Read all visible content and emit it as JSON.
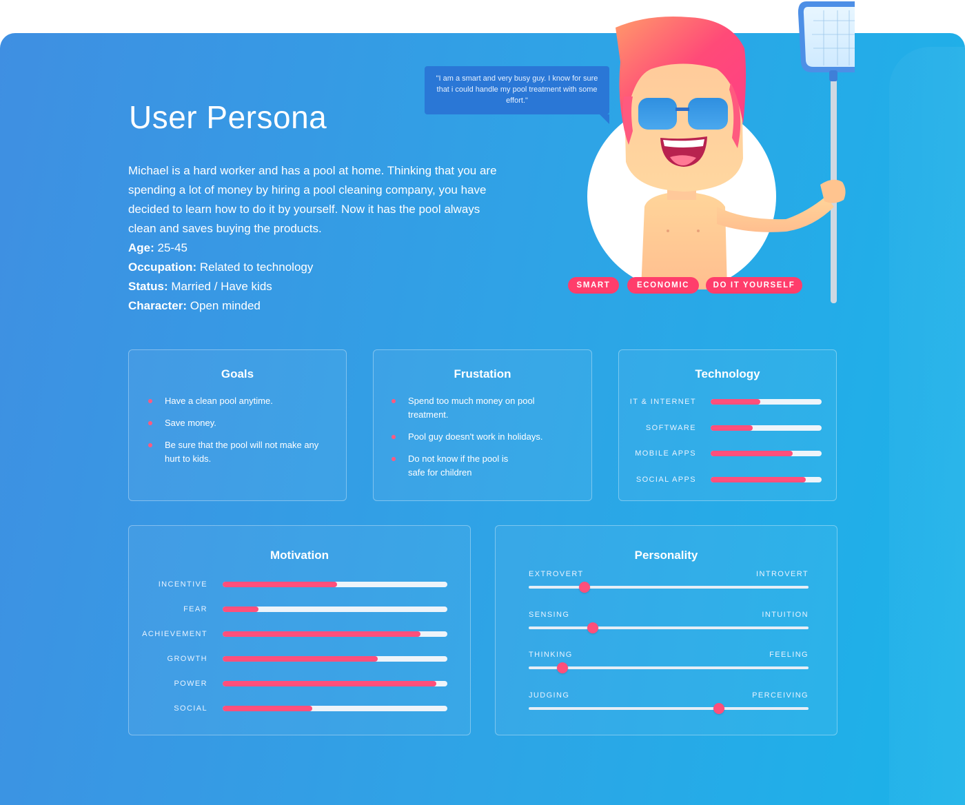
{
  "title": "User Persona",
  "quote": "\"I am a smart and very busy guy. I know for sure that i could handle my pool treatment with some effort.\"",
  "description": "Michael is a hard worker and has a pool at home. Thinking  that you are spending a lot of money by hiring a pool cleaning company, you have decided to learn how to do it by yourself. Now it has the pool always clean and saves buying the products.",
  "details": [
    {
      "label": "Age:",
      "value": "25-45"
    },
    {
      "label": "Occupation:",
      "value": "Related to technology"
    },
    {
      "label": "Status:",
      "value": "Married / Have kids"
    },
    {
      "label": "Character:",
      "value": "Open minded"
    }
  ],
  "tags": [
    "SMART",
    "ECONOMIC",
    "DO IT YOURSELF"
  ],
  "goals": {
    "title": "Goals",
    "items": [
      "Have a clean pool anytime.",
      "Save money.",
      "Be sure that the pool will not make any hurt to kids."
    ]
  },
  "frustration": {
    "title": "Frustation",
    "items": [
      "Spend too much money on pool treatment.",
      "Pool guy doesn't work in holidays.",
      "Do not know if the pool is safe for children"
    ]
  },
  "technology": {
    "title": "Technology",
    "items": [
      {
        "label": "IT & INTERNET",
        "value": 0.45
      },
      {
        "label": "SOFTWARE",
        "value": 0.38
      },
      {
        "label": "MOBILE APPS",
        "value": 0.74
      },
      {
        "label": "SOCIAL APPS",
        "value": 0.86
      }
    ]
  },
  "motivation": {
    "title": "Motivation",
    "items": [
      {
        "label": "INCENTIVE",
        "value": 0.51
      },
      {
        "label": "FEAR",
        "value": 0.16
      },
      {
        "label": "ACHIEVEMENT",
        "value": 0.88
      },
      {
        "label": "GROWTH",
        "value": 0.69
      },
      {
        "label": "POWER",
        "value": 0.95
      },
      {
        "label": "SOCIAL",
        "value": 0.4
      }
    ]
  },
  "personality": {
    "title": "Personality",
    "items": [
      {
        "left": "EXTROVERT",
        "right": "INTROVERT",
        "value": 0.2
      },
      {
        "left": "SENSING",
        "right": "INTUITION",
        "value": 0.23
      },
      {
        "left": "THINKING",
        "right": "FEELING",
        "value": 0.12
      },
      {
        "left": "JUDGING",
        "right": "PERCEIVING",
        "value": 0.68
      }
    ]
  },
  "colors": {
    "accent": "#ff4f7b",
    "background_start": "#3f8fe2",
    "background_end": "#1bb3e9"
  }
}
